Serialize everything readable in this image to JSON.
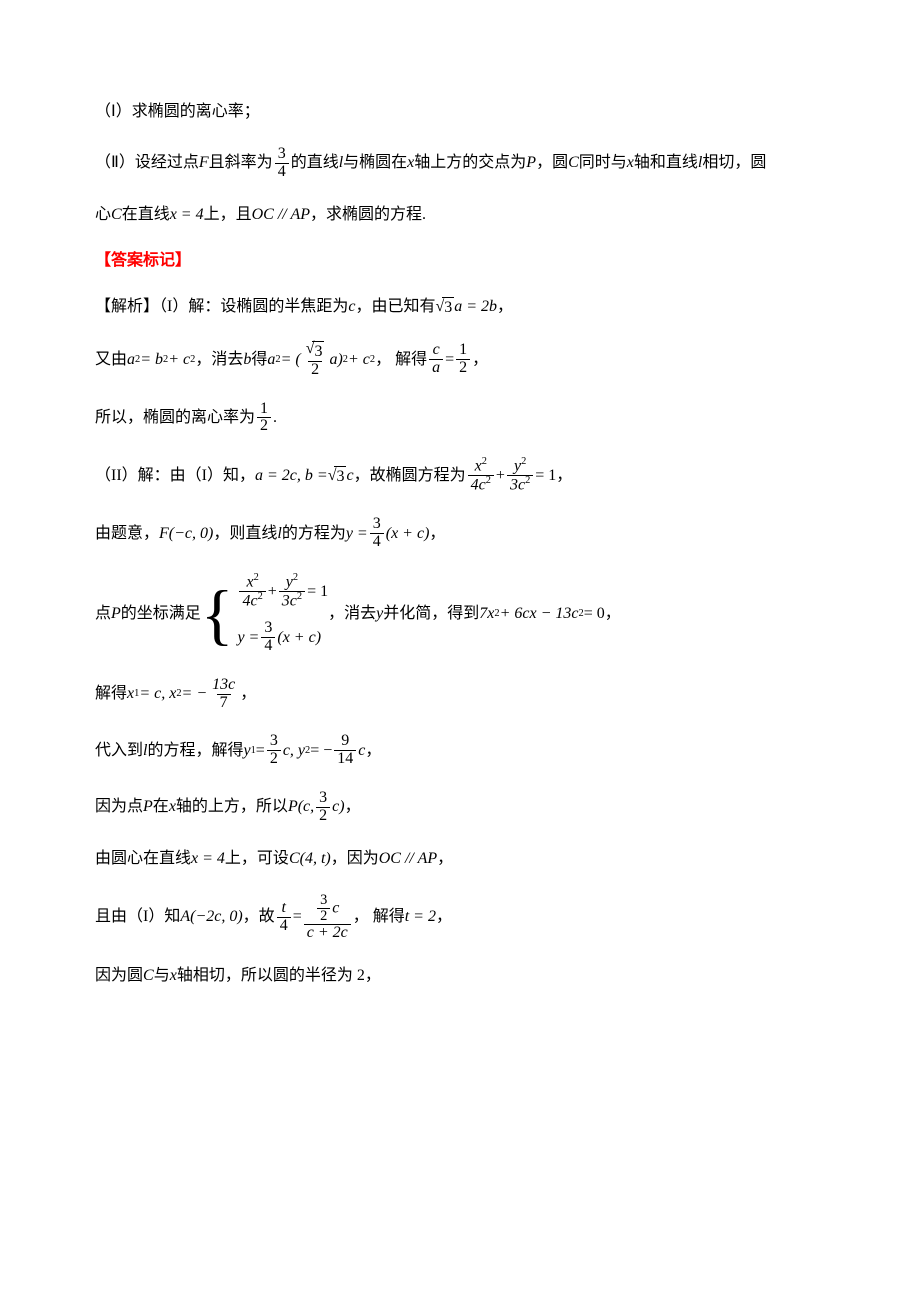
{
  "colors": {
    "answer_mark": "#ff0000",
    "text": "#000000",
    "bg": "#ffffff"
  },
  "fontsize_pt": 12,
  "p1": {
    "t1": "（Ⅰ）求椭圆的离心率；"
  },
  "p2": {
    "t1": "（Ⅱ）设经过点",
    "F": "F",
    "t2": "且斜率为",
    "frac_num": "3",
    "frac_den": "4",
    "t3": "的直线",
    "l": "l",
    "t4": "与椭圆在",
    "x": "x",
    "t5": "轴上方的交点为",
    "P": "P",
    "t6": " ，圆",
    "C": "C",
    "t7": "同时与",
    "x2": "x",
    "t8": "轴和直线",
    "l2": "l",
    "t9": "相切，圆"
  },
  "p3": {
    "t1": "心",
    "C": "C",
    "t2": "在直线",
    "eq": "x = 4",
    "t3": "上，且",
    "par": "OC // AP",
    "t4": " ，求椭圆的方程."
  },
  "answer_label": "【答案标记】",
  "p4": {
    "t1": "【解析】（I）解：设椭圆的半焦距为",
    "c": "c",
    "t2": "，由已知有",
    "sqrt": "3",
    "rhs": "a = 2b",
    "t3": "，"
  },
  "p5": {
    "t1": "又由",
    "eq1_lhs": "a",
    "eq1_sup1": "2",
    "eq1_mid": " = b",
    "eq1_sup2": "2",
    "eq1_plus": " + c",
    "eq1_sup3": "2",
    "t2": "，消去",
    "b": "b",
    "t3": "得",
    "eq2_a": "a",
    "eq2_asup": "2",
    "eq2_eq": " = (",
    "frac_num": "3",
    "frac_den": "2",
    "eq2_a2": "a)",
    "eq2_sup": "2",
    "eq2_plus": " + c",
    "eq2_csup": "2",
    "t4": "， 解得",
    "frac2_num": "c",
    "frac2_den": "a",
    "eq3_eq": " = ",
    "frac3_num": "1",
    "frac3_den": "2",
    "t5": "，",
    "sqrt_in_num": "√3"
  },
  "p6": {
    "t1": "所以，椭圆的离心率为",
    "num": "1",
    "den": "2",
    "t2": "."
  },
  "p7": {
    "t1": "（II）解：由（I）知，",
    "eq": "a = 2c, b = ",
    "sqrt": "3",
    "eq2": "c",
    "t2": "，故椭圆方程为",
    "f1n": "x",
    "f1nsup": "2",
    "f1d": "4c",
    "f1dsup": "2",
    "plus": " + ",
    "f2n": "y",
    "f2nsup": "2",
    "f2d": "3c",
    "f2dsup": "2",
    "eqone": " = 1",
    "t3": "，"
  },
  "p8": {
    "t1": "由题意，",
    "F": "F(−c, 0)",
    "t2": "，则直线",
    "l": "l",
    "t3": "的方程为",
    "y": "y = ",
    "num": "3",
    "den": "4",
    "after": "(x + c)",
    "t4": "，"
  },
  "p9": {
    "t1": "点",
    "P": "P",
    "t2": " 的坐标满足",
    "line1_f1n": "x",
    "line1_f1nsup": "2",
    "line1_f1d": "4c",
    "line1_f1dsup": "2",
    "line1_plus": " + ",
    "line1_f2n": "y",
    "line1_f2nsup": "2",
    "line1_f2d": "3c",
    "line1_f2dsup": "2",
    "line1_eq": " = 1",
    "line2_y": "y = ",
    "line2_num": "3",
    "line2_den": "4",
    "line2_after": "(x + c)",
    "t3": "，消去",
    "yy": "y",
    "t4": "并化简，得到",
    "poly1": "7x",
    "polysup1": "2",
    "poly2": " + 6cx − 13c",
    "polysup2": "2",
    "poly3": " = 0",
    "t5": "，"
  },
  "p10": {
    "t1": "解得",
    "x1": "x",
    "sub1": "1",
    "eq1": " = c, x",
    "sub2": "2",
    "eq2": " = −",
    "num": "13c",
    "den": "7",
    "t2": "，"
  },
  "p11": {
    "t1": "代入到",
    "l": "l",
    "t2": "的方程，解得",
    "y1": "y",
    "sub1": "1",
    "eq1": " = ",
    "n1": "3",
    "d1": "2",
    "c1": "c, y",
    "sub2": "2",
    "eq2": " = −",
    "n2": "9",
    "d2": "14",
    "c2": "c",
    "t3": "，"
  },
  "p12": {
    "t1": "因为点",
    "P": "P",
    "t2": "在",
    "x": "x",
    "t3": "轴的上方，所以",
    "Pc": "P(c, ",
    "num": "3",
    "den": "2",
    "c": "c)",
    "t4": "，"
  },
  "p13": {
    "t1": "由圆心在直线",
    "eq": "x = 4",
    "t2": "上，可设",
    "C": "C(4, t)",
    "t3": "，因为",
    "par": "OC // AP",
    "t4": "，"
  },
  "p14": {
    "t1": "且由（I）知",
    "A": "A(−2c, 0)",
    "t2": "，故",
    "ln": "t",
    "ld": "4",
    "eqmid": " = ",
    "rn_num": "3",
    "rn_den": "2",
    "rn_c": "c",
    "rd": "c + 2c",
    "t3": "， 解得",
    "teq": "t = 2",
    "t4": "，"
  },
  "p15": {
    "t1": "因为圆",
    "C": "C",
    "t2": "与",
    "x": "x",
    "t3": "轴相切，所以圆的半径为 2，"
  }
}
